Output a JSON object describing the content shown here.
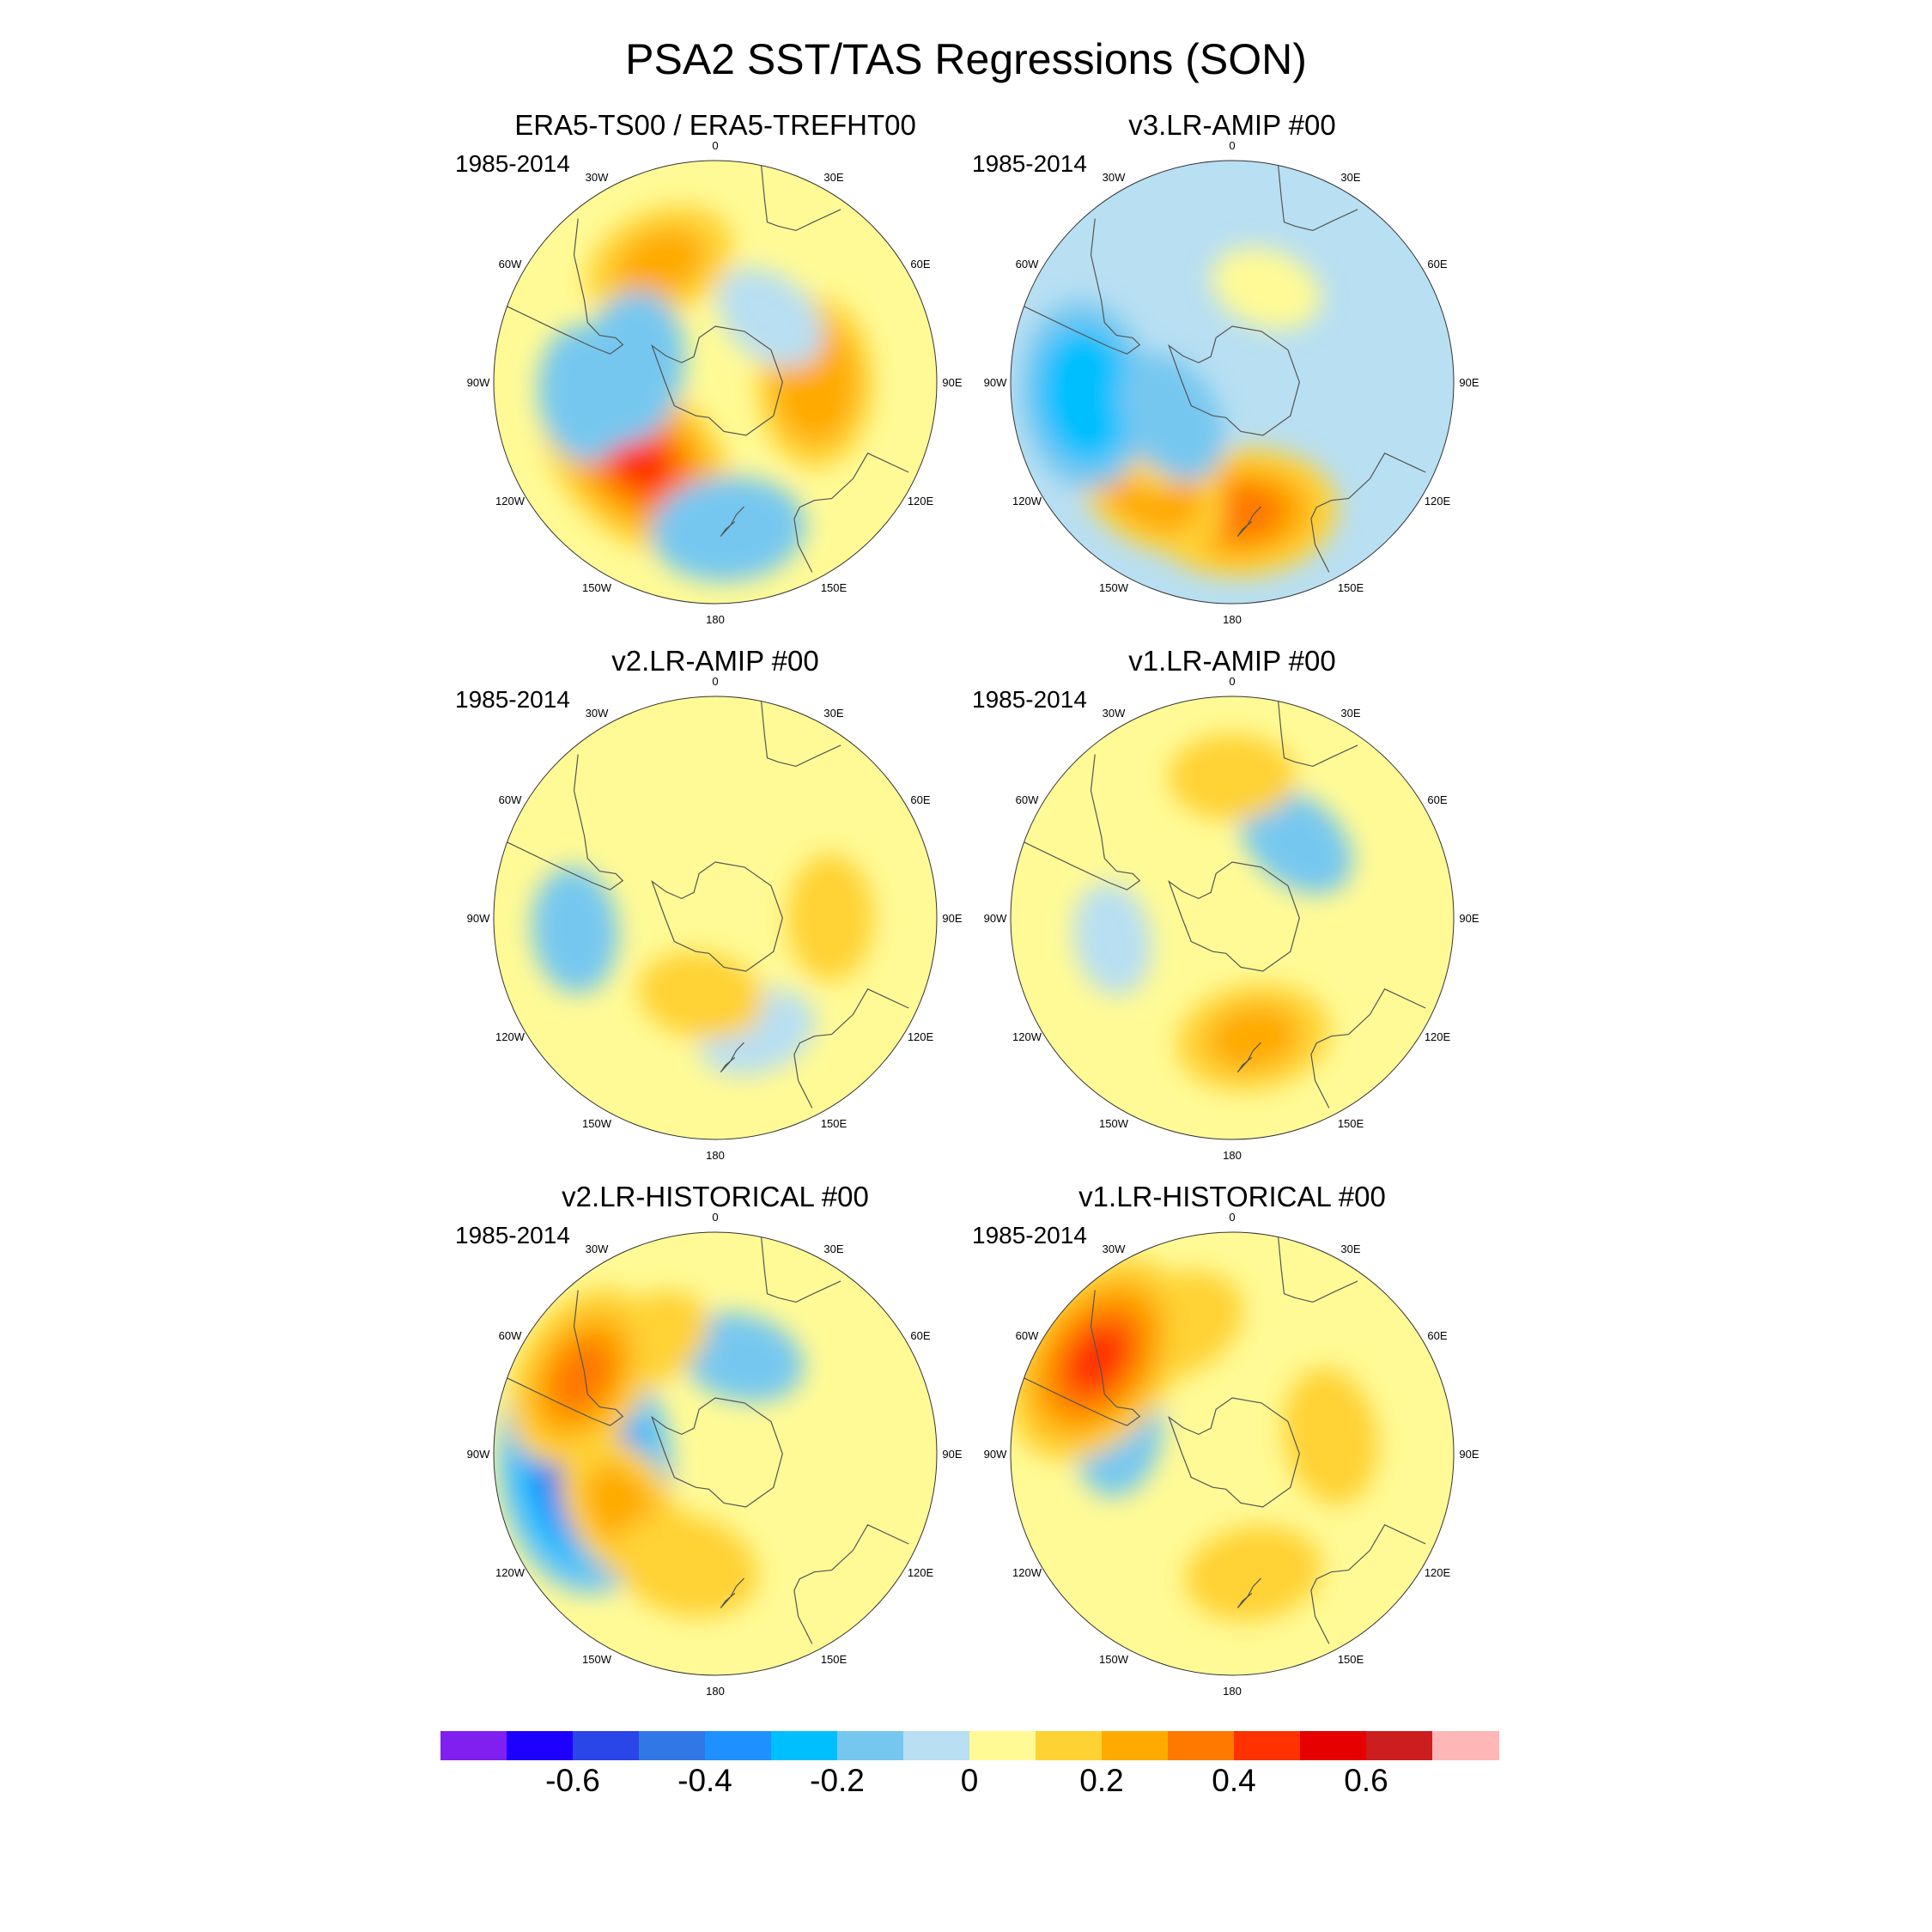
{
  "title": "PSA2 SST/TAS Regressions (SON)",
  "panels": [
    {
      "title": "ERA5-TS00 / ERA5-TREFHT00",
      "period": "1985-2014"
    },
    {
      "title": "v3.LR-AMIP  #00",
      "period": "1985-2014"
    },
    {
      "title": "v2.LR-AMIP  #00",
      "period": "1985-2014"
    },
    {
      "title": "v1.LR-AMIP  #00",
      "period": "1985-2014"
    },
    {
      "title": "v2.LR-HISTORICAL  #00",
      "period": "1985-2014"
    },
    {
      "title": "v1.LR-HISTORICAL  #00",
      "period": "1985-2014"
    }
  ],
  "longitude_labels": [
    {
      "text": "0",
      "lon": 0
    },
    {
      "text": "30E",
      "lon": 30
    },
    {
      "text": "60E",
      "lon": 60
    },
    {
      "text": "90E",
      "lon": 90
    },
    {
      "text": "120E",
      "lon": 120
    },
    {
      "text": "150E",
      "lon": 150
    },
    {
      "text": "180",
      "lon": 180
    },
    {
      "text": "150W",
      "lon": -150
    },
    {
      "text": "120W",
      "lon": -120
    },
    {
      "text": "90W",
      "lon": -90
    },
    {
      "text": "60W",
      "lon": -60
    },
    {
      "text": "30W",
      "lon": -30
    }
  ],
  "colorbar": {
    "colors": [
      "#8020f0",
      "#1e00ff",
      "#2a45e8",
      "#3277e6",
      "#1e90ff",
      "#00bfff",
      "#76c7f0",
      "#b8dff2",
      "#fffa96",
      "#ffd234",
      "#ffaa00",
      "#ff7800",
      "#ff3200",
      "#e60000",
      "#cc1e1e",
      "#ffb6b6"
    ],
    "labels": [
      "-0.6",
      "-0.4",
      "-0.2",
      "0",
      "0.2",
      "0.4",
      "0.6"
    ],
    "label_values": [
      -0.6,
      -0.4,
      -0.2,
      0,
      0.2,
      0.4,
      0.6
    ],
    "range": [
      -0.8,
      0.8
    ]
  },
  "chart_data": {
    "type": "heatmap",
    "title": "PSA2 SST/TAS Regressions (SON)",
    "projection": "south-polar-stereographic",
    "color_levels": [
      -0.7,
      -0.6,
      -0.5,
      -0.4,
      -0.3,
      -0.2,
      -0.1,
      0,
      0.1,
      0.2,
      0.3,
      0.4,
      0.5,
      0.6,
      0.7
    ],
    "panels": [
      {
        "name": "ERA5-TS00 / ERA5-TREFHT00",
        "base_value": 0.05,
        "anomalies": [
          {
            "lon": -135,
            "lat": -52,
            "value": 0.4
          },
          {
            "lon": 90,
            "lat": -55,
            "value": 0.25
          },
          {
            "lon": -25,
            "lat": -45,
            "value": 0.2
          },
          {
            "lon": -80,
            "lat": -60,
            "value": -0.2
          },
          {
            "lon": -95,
            "lat": -45,
            "value": -0.15
          },
          {
            "lon": 175,
            "lat": -40,
            "value": -0.2
          },
          {
            "lon": 40,
            "lat": -60,
            "value": -0.1
          }
        ]
      },
      {
        "name": "v3.LR-AMIP  #00",
        "base_value": -0.05,
        "anomalies": [
          {
            "lon": 175,
            "lat": -45,
            "value": 0.3
          },
          {
            "lon": -140,
            "lat": -45,
            "value": 0.25
          },
          {
            "lon": -115,
            "lat": -55,
            "value": 0.15
          },
          {
            "lon": -95,
            "lat": -40,
            "value": -0.3
          },
          {
            "lon": -120,
            "lat": -65,
            "value": -0.15
          },
          {
            "lon": 20,
            "lat": -55,
            "value": 0.08
          }
        ]
      },
      {
        "name": "v2.LR-AMIP  #00",
        "base_value": 0.05,
        "anomalies": [
          {
            "lon": -95,
            "lat": -42,
            "value": -0.12
          },
          {
            "lon": 160,
            "lat": -48,
            "value": -0.1
          },
          {
            "lon": 90,
            "lat": -50,
            "value": 0.12
          },
          {
            "lon": -170,
            "lat": -62,
            "value": 0.12
          }
        ]
      },
      {
        "name": "v1.LR-AMIP  #00",
        "base_value": 0.04,
        "anomalies": [
          {
            "lon": 170,
            "lat": -48,
            "value": 0.2
          },
          {
            "lon": 40,
            "lat": -55,
            "value": -0.12
          },
          {
            "lon": -100,
            "lat": -48,
            "value": -0.08
          },
          {
            "lon": 0,
            "lat": -42,
            "value": 0.12
          }
        ]
      },
      {
        "name": "v2.LR-HISTORICAL  #00",
        "base_value": 0.05,
        "anomalies": [
          {
            "lon": -95,
            "lat": -45,
            "value": -0.5
          },
          {
            "lon": -120,
            "lat": -52,
            "value": 0.2
          },
          {
            "lon": -165,
            "lat": -50,
            "value": 0.18
          },
          {
            "lon": 15,
            "lat": -55,
            "value": -0.12
          },
          {
            "lon": -30,
            "lat": -45,
            "value": 0.12
          },
          {
            "lon": -60,
            "lat": -38,
            "value": 0.3
          }
        ]
      },
      {
        "name": "v1.LR-HISTORICAL  #00",
        "base_value": 0.05,
        "anomalies": [
          {
            "lon": 80,
            "lat": -55,
            "value": 0.15
          },
          {
            "lon": -25,
            "lat": -42,
            "value": 0.18
          },
          {
            "lon": -80,
            "lat": -50,
            "value": -0.12
          },
          {
            "lon": 170,
            "lat": -48,
            "value": 0.15
          },
          {
            "lon": -55,
            "lat": -35,
            "value": 0.4
          }
        ]
      }
    ]
  }
}
